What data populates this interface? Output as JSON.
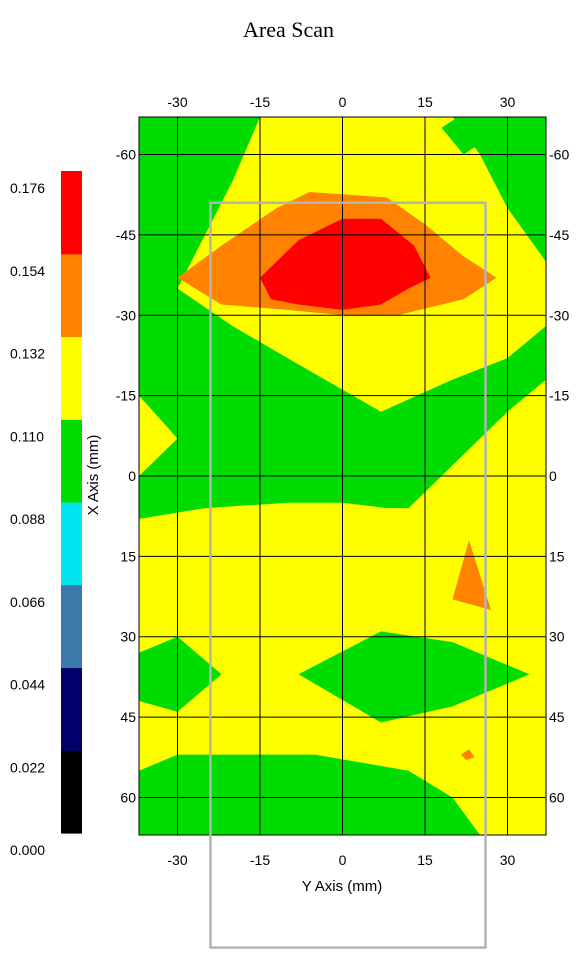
{
  "chart_data": {
    "type": "heatmap",
    "title": "Area Scan",
    "xlabel": "Y Axis (mm)",
    "ylabel": "X Axis (mm)",
    "xlim": [
      -37,
      37
    ],
    "ylim": [
      -67,
      67
    ],
    "y_axis_inverted": true,
    "grid": true,
    "x_ticks": [
      -30,
      -15,
      0,
      15,
      30
    ],
    "y_ticks": [
      -60,
      -45,
      -30,
      -15,
      0,
      15,
      30,
      45,
      60
    ],
    "colorbar": {
      "levels": [
        0.0,
        0.022,
        0.044,
        0.066,
        0.088,
        0.11,
        0.132,
        0.154,
        0.176
      ],
      "labels": [
        "0.000",
        "0.022",
        "0.044",
        "0.066",
        "0.088",
        "0.110",
        "0.132",
        "0.154",
        "0.176"
      ],
      "colors": [
        "#000000",
        "#00006e",
        "#3c78aa",
        "#00e6f0",
        "#00dc00",
        "#ffff00",
        "#ff8200",
        "#ff0000"
      ]
    },
    "regions": [
      {
        "band": "0.110–0.132",
        "color": "#00dc00",
        "points": [
          [
            -37,
            -67
          ],
          [
            37,
            -67
          ],
          [
            37,
            67
          ],
          [
            -37,
            67
          ]
        ]
      },
      {
        "band": "0.132–0.154",
        "color": "#ffff00",
        "points": [
          [
            -37,
            -15
          ],
          [
            -30,
            -7
          ],
          [
            -37,
            0
          ],
          [
            -37,
            -15
          ]
        ]
      },
      {
        "band": "0.132–0.154",
        "color": "#ffff00",
        "points": [
          [
            -37,
            8
          ],
          [
            -25,
            6
          ],
          [
            -10,
            5
          ],
          [
            0,
            5
          ],
          [
            8,
            6
          ],
          [
            12,
            6
          ],
          [
            15,
            3
          ],
          [
            20,
            -2
          ],
          [
            25,
            -7
          ],
          [
            30,
            -12
          ],
          [
            37,
            -18
          ],
          [
            37,
            67
          ],
          [
            -37,
            67
          ]
        ]
      },
      {
        "band": "0.110–0.132",
        "color": "#00dc00",
        "points": [
          [
            -37,
            33
          ],
          [
            -30,
            30
          ],
          [
            -22,
            37
          ],
          [
            -30,
            44
          ],
          [
            -37,
            42
          ]
        ]
      },
      {
        "band": "0.110–0.132",
        "color": "#00dc00",
        "points": [
          [
            -8,
            37
          ],
          [
            7,
            29
          ],
          [
            20,
            31
          ],
          [
            34,
            37
          ],
          [
            20,
            43
          ],
          [
            7,
            46
          ]
        ]
      },
      {
        "band": "0.110–0.132",
        "color": "#00dc00",
        "points": [
          [
            -37,
            55
          ],
          [
            -30,
            52
          ],
          [
            -5,
            52
          ],
          [
            12,
            55
          ],
          [
            20,
            60
          ],
          [
            25,
            67
          ],
          [
            -37,
            67
          ]
        ]
      },
      {
        "band": "0.132–0.154",
        "color": "#ffff00",
        "points": [
          [
            -15,
            -67
          ],
          [
            20,
            -67
          ],
          [
            25,
            -60
          ],
          [
            30,
            -50
          ],
          [
            37,
            -40
          ],
          [
            37,
            -28
          ],
          [
            30,
            -22
          ],
          [
            20,
            -18
          ],
          [
            7,
            -12
          ],
          [
            -10,
            -22
          ],
          [
            -20,
            -28
          ],
          [
            -30,
            -35
          ],
          [
            -25,
            -45
          ],
          [
            -20,
            -55
          ]
        ]
      },
      {
        "band": "0.110–0.132",
        "color": "#00dc00",
        "points": [
          [
            21,
            -67
          ],
          [
            25,
            -62
          ],
          [
            22,
            -60
          ],
          [
            18,
            -65
          ]
        ]
      },
      {
        "band": "0.154–0.176",
        "color": "#ff8200",
        "points": [
          [
            -30,
            -37
          ],
          [
            -22,
            -43
          ],
          [
            -12,
            -50
          ],
          [
            -6,
            -53
          ],
          [
            8,
            -52
          ],
          [
            15,
            -47
          ],
          [
            22,
            -41
          ],
          [
            28,
            -37
          ],
          [
            22,
            -33
          ],
          [
            10,
            -30
          ],
          [
            0,
            -30
          ],
          [
            -10,
            -31
          ],
          [
            -22,
            -32
          ]
        ]
      },
      {
        "band": "0.176+",
        "color": "#ff0000",
        "points": [
          [
            -15,
            -37
          ],
          [
            -8,
            -44
          ],
          [
            0,
            -48
          ],
          [
            7,
            -48
          ],
          [
            13,
            -43
          ],
          [
            16,
            -37
          ],
          [
            12,
            -35
          ],
          [
            7,
            -32
          ],
          [
            0,
            -31
          ],
          [
            -8,
            -32
          ],
          [
            -13,
            -33
          ]
        ]
      },
      {
        "band": "0.154–0.176",
        "color": "#ff8200",
        "points": [
          [
            23,
            12
          ],
          [
            27,
            25
          ],
          [
            20,
            23
          ]
        ]
      },
      {
        "band": "0.154–0.176",
        "color": "#ff8200",
        "points": [
          [
            21.5,
            52
          ],
          [
            23,
            51
          ],
          [
            24,
            52.5
          ],
          [
            22.5,
            53
          ]
        ]
      }
    ],
    "scan_frame": {
      "y_range_mm": [
        -24,
        26
      ],
      "x_range_mm": [
        -51,
        88
      ],
      "color": "#b4b4b4"
    }
  }
}
